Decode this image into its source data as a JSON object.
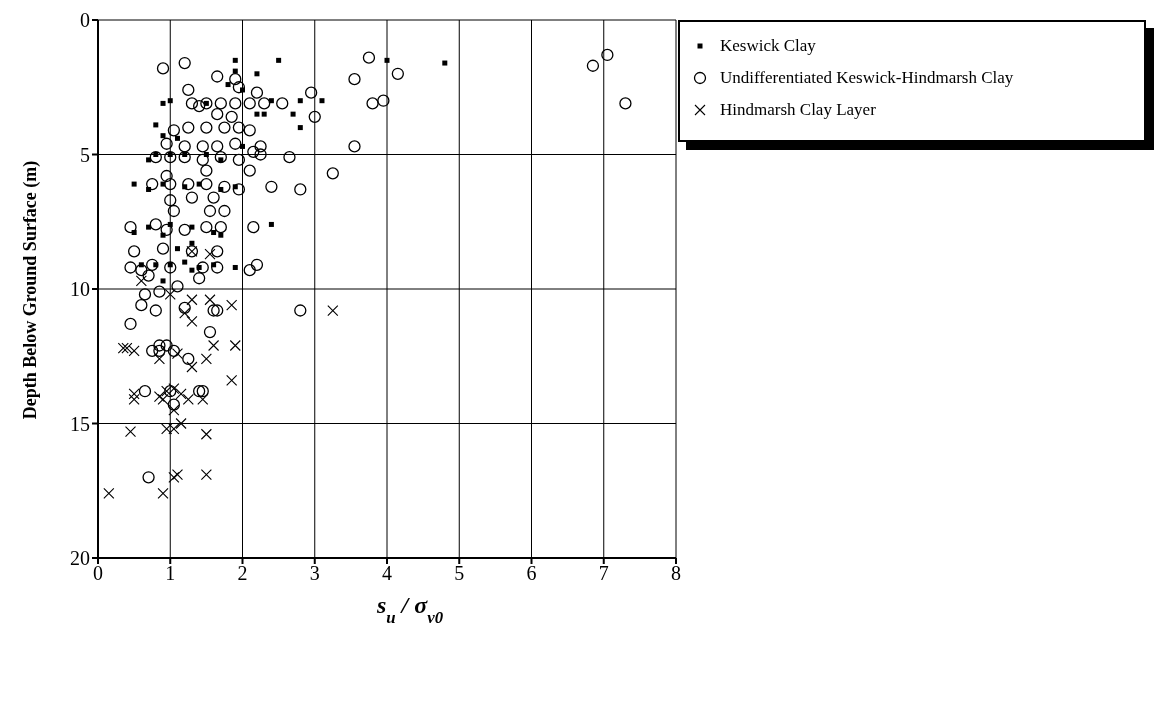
{
  "chart_data": {
    "type": "scatter",
    "xlabel": "s$_{u}$ / σ$_{v0}$",
    "ylabel": "Depth Below Ground Surface (m)",
    "xlim": [
      0,
      8
    ],
    "xticks": [
      0,
      1,
      2,
      3,
      4,
      5,
      6,
      7,
      8
    ],
    "ylim": [
      20,
      0
    ],
    "yticks": [
      0,
      5,
      10,
      15,
      20
    ],
    "grid": true,
    "legend": "top right",
    "series": [
      {
        "name": "Keswick Clay",
        "color": "#000000",
        "marker": "square",
        "x": [
          1.9,
          2.5,
          4.0,
          4.8,
          1.9,
          2.2,
          1.8,
          2.0,
          0.9,
          1.0,
          1.5,
          2.4,
          2.8,
          3.1,
          2.7,
          2.2,
          2.3,
          2.8,
          0.8,
          0.9,
          0.7,
          0.8,
          1.0,
          1.1,
          1.2,
          1.5,
          1.7,
          2.0,
          0.5,
          0.7,
          0.9,
          1.2,
          1.4,
          1.7,
          1.9,
          0.7,
          1.0,
          1.3,
          1.6,
          2.4,
          0.9,
          1.1,
          1.3,
          0.6,
          0.8,
          1.0,
          1.2,
          1.4,
          1.6,
          1.9,
          0.9,
          1.3,
          0.5,
          1.7
        ],
        "values": [
          1.5,
          1.5,
          1.5,
          1.6,
          1.9,
          2.0,
          2.4,
          2.6,
          3.1,
          3.0,
          3.1,
          3.0,
          3.0,
          3.0,
          3.5,
          3.5,
          3.5,
          4.0,
          3.9,
          4.3,
          5.2,
          5.0,
          5.0,
          4.4,
          5.0,
          5.0,
          5.2,
          4.7,
          6.1,
          6.3,
          6.1,
          6.2,
          6.1,
          6.3,
          6.2,
          7.7,
          7.6,
          7.7,
          7.9,
          7.6,
          8.0,
          8.5,
          8.3,
          9.1,
          9.1,
          9.1,
          9.0,
          9.2,
          9.1,
          9.2,
          9.7,
          9.3,
          7.9,
          8.0
        ]
      },
      {
        "name": "Undifferentiated Keswick-Hindmarsh Clay",
        "color": "#000000",
        "marker": "circle",
        "x": [
          0.9,
          1.2,
          1.65,
          1.9,
          1.95,
          2.2,
          1.25,
          3.75,
          4.15,
          3.55,
          6.85,
          7.05,
          7.3,
          2.95,
          3.8,
          3.95,
          2.1,
          2.3,
          2.55,
          3.0,
          1.3,
          1.5,
          1.7,
          1.9,
          1.4,
          1.85,
          1.65,
          1.95,
          2.1,
          1.05,
          1.25,
          1.5,
          1.75,
          0.95,
          1.2,
          1.45,
          1.65,
          1.9,
          2.25,
          2.15,
          2.25,
          3.55,
          0.8,
          1.0,
          1.2,
          1.45,
          1.7,
          1.95,
          2.65,
          2.1,
          1.5,
          0.95,
          0.75,
          1.0,
          1.25,
          1.5,
          1.75,
          1.95,
          2.4,
          2.8,
          3.25,
          1.0,
          1.3,
          1.6,
          1.05,
          1.55,
          1.75,
          0.45,
          0.8,
          0.95,
          1.2,
          1.5,
          1.7,
          2.15,
          0.9,
          1.3,
          1.65,
          0.5,
          0.45,
          0.6,
          0.75,
          1.0,
          1.45,
          1.65,
          2.1,
          2.2,
          0.7,
          1.4,
          0.65,
          0.85,
          1.1,
          0.6,
          1.2,
          1.6,
          1.65,
          0.8,
          2.8,
          0.45,
          1.55,
          0.85,
          0.95,
          0.75,
          0.85,
          1.05,
          1.25,
          0.65,
          1.0,
          1.4,
          1.45,
          1.05,
          0.7
        ],
        "values": [
          1.8,
          1.6,
          2.1,
          2.2,
          2.5,
          2.7,
          2.6,
          1.4,
          2.0,
          2.2,
          1.7,
          1.3,
          3.1,
          2.7,
          3.1,
          3.0,
          3.1,
          3.1,
          3.1,
          3.6,
          3.1,
          3.1,
          3.1,
          3.1,
          3.2,
          3.6,
          3.5,
          4.0,
          4.1,
          4.1,
          4.0,
          4.0,
          4.0,
          4.6,
          4.7,
          4.7,
          4.7,
          4.6,
          4.7,
          4.9,
          5.0,
          4.7,
          5.1,
          5.1,
          5.1,
          5.2,
          5.1,
          5.2,
          5.1,
          5.6,
          5.6,
          5.8,
          6.1,
          6.1,
          6.1,
          6.1,
          6.2,
          6.3,
          6.2,
          6.3,
          5.7,
          6.7,
          6.6,
          6.6,
          7.1,
          7.1,
          7.1,
          7.7,
          7.6,
          7.8,
          7.8,
          7.7,
          7.7,
          7.7,
          8.5,
          8.6,
          8.6,
          8.6,
          9.2,
          9.3,
          9.1,
          9.2,
          9.2,
          9.2,
          9.3,
          9.1,
          9.5,
          9.6,
          10.2,
          10.1,
          9.9,
          10.6,
          10.7,
          10.8,
          10.8,
          10.8,
          10.8,
          11.3,
          11.6,
          12.1,
          12.1,
          12.3,
          12.3,
          12.3,
          12.6,
          13.8,
          13.8,
          13.8,
          13.8,
          14.3,
          17.0
        ]
      },
      {
        "name": "Hindmarsh Clay Layer",
        "color": "#000000",
        "marker": "cross",
        "x": [
          0.15,
          0.9,
          1.1,
          1.05,
          1.5,
          0.45,
          0.95,
          1.05,
          1.15,
          1.5,
          0.5,
          0.5,
          0.85,
          0.95,
          0.9,
          1.05,
          1.15,
          1.05,
          1.25,
          1.45,
          1.85,
          0.4,
          0.5,
          0.85,
          1.1,
          1.3,
          1.5,
          1.9,
          1.6,
          0.35,
          1.3,
          1.55,
          1.3,
          1.85,
          1.2,
          1.0,
          1.3,
          0.6,
          3.25,
          1.55
        ],
        "values": [
          17.6,
          17.6,
          16.9,
          17.0,
          16.9,
          15.3,
          15.2,
          15.2,
          15.0,
          15.4,
          14.1,
          13.9,
          14.0,
          13.8,
          14.1,
          13.7,
          13.9,
          14.5,
          14.1,
          14.1,
          13.4,
          12.2,
          12.3,
          12.6,
          12.4,
          12.9,
          12.6,
          12.1,
          12.1,
          12.2,
          11.2,
          10.4,
          10.4,
          10.6,
          10.9,
          10.2,
          8.6,
          9.7,
          10.8,
          8.7
        ]
      }
    ]
  }
}
